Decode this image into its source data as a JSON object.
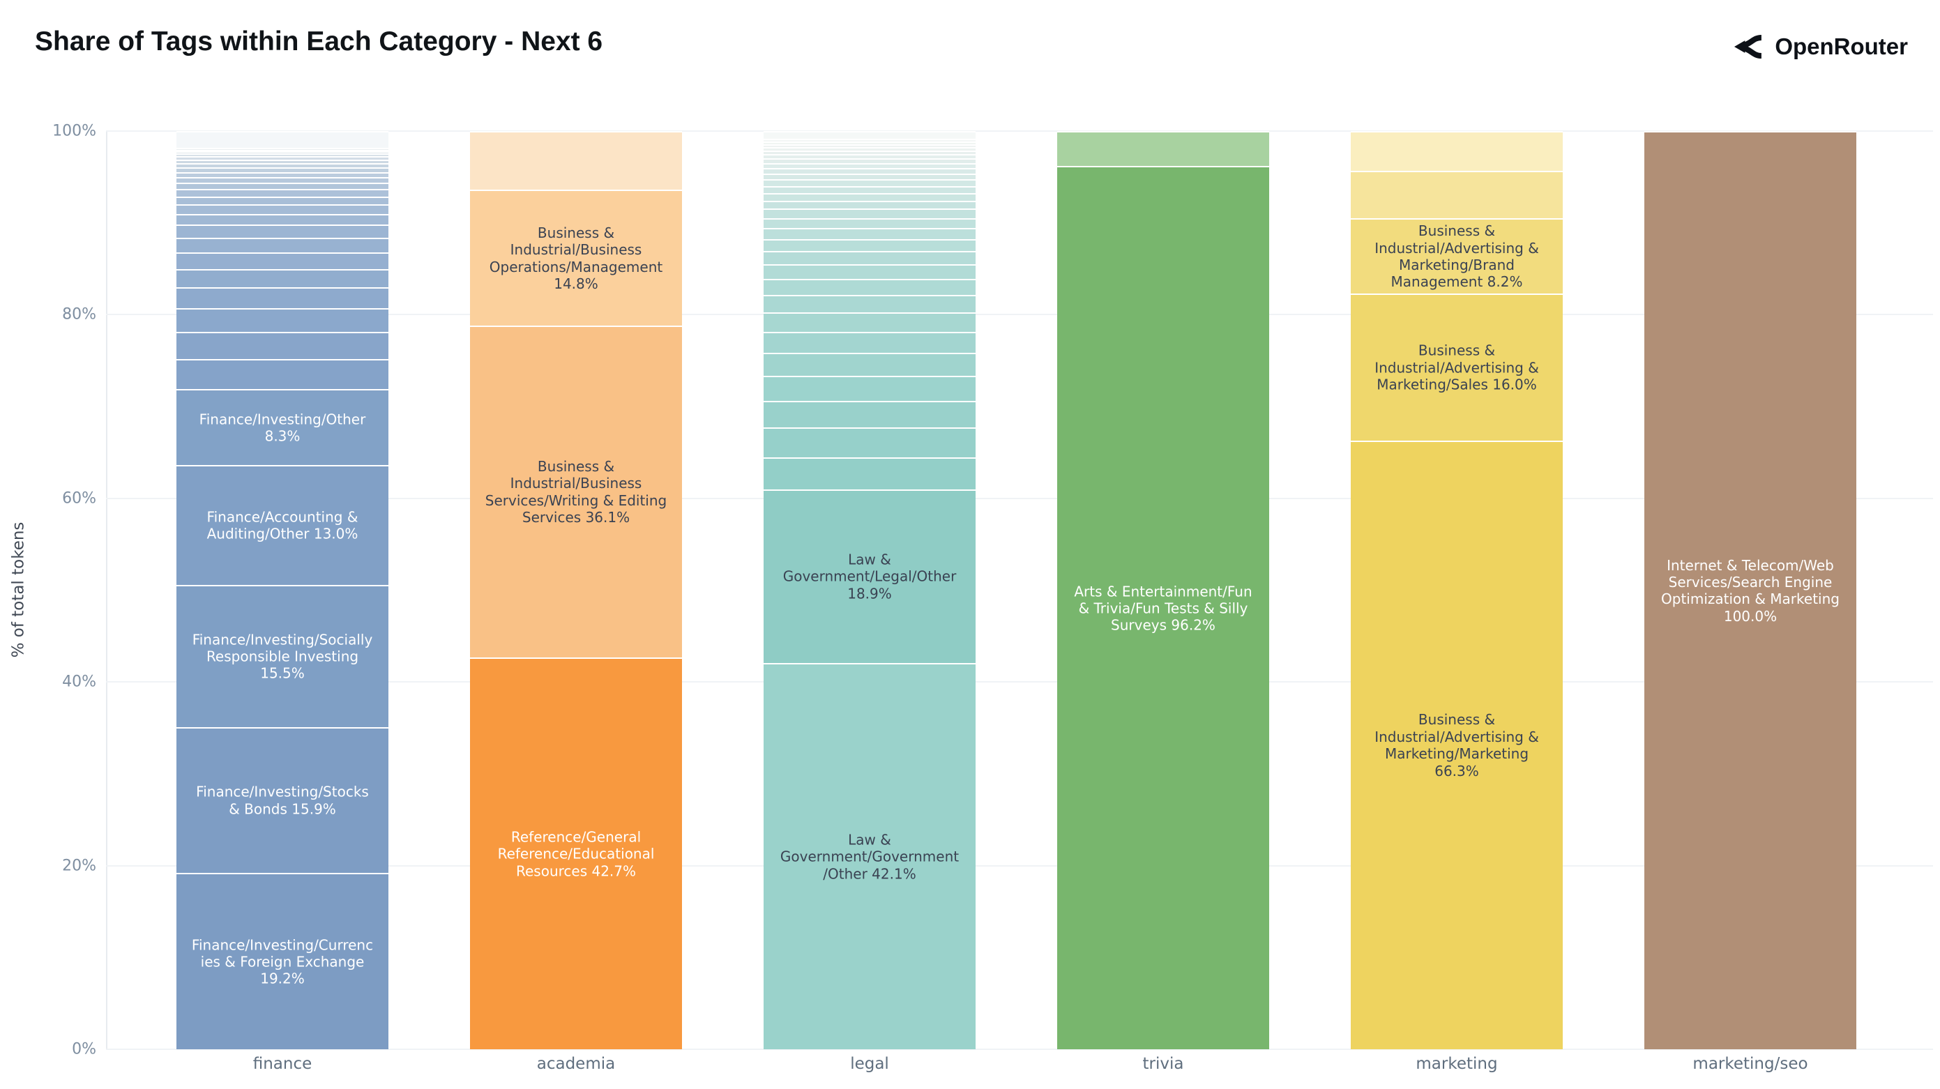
{
  "header": {
    "title": "Share of Tags within Each Category - Next 6",
    "brand": "OpenRouter"
  },
  "y_axis": {
    "title": "% of total tokens",
    "ticks": [
      "0%",
      "20%",
      "40%",
      "60%",
      "80%",
      "100%"
    ]
  },
  "chart_data": {
    "type": "bar",
    "subtype": "percent-stacked-vertical",
    "title": "Share of Tags within Each Category - Next 6",
    "xlabel": "",
    "ylabel": "% of total tokens",
    "ylim": [
      0,
      100
    ],
    "grid": true,
    "legend": "none (labels drawn inside segments)",
    "categories": [
      "finance",
      "academia",
      "legal",
      "trivia",
      "marketing",
      "marketing/seo"
    ],
    "bars": [
      {
        "category": "finance",
        "segments": [
          {
            "label": "Finance/Investing/Currencies & Foreign Exchange",
            "pct": 19.2,
            "color": "#7d9cc3",
            "text_color": "#ffffff"
          },
          {
            "label": "Finance/Investing/Stocks & Bonds",
            "pct": 15.9,
            "color": "#7e9dc4",
            "text_color": "#ffffff"
          },
          {
            "label": "Finance/Investing/Socially Responsible Investing",
            "pct": 15.5,
            "color": "#7f9fc5",
            "text_color": "#ffffff"
          },
          {
            "label": "Finance/Accounting & Auditing/Other",
            "pct": 13.0,
            "color": "#81a0c6",
            "text_color": "#ffffff"
          },
          {
            "label": "Finance/Investing/Other",
            "pct": 8.3,
            "color": "#82a2c7",
            "text_color": "#ffffff"
          },
          {
            "label": "",
            "pct": 3.3,
            "color": "#85a3c9"
          },
          {
            "label": "",
            "pct": 2.9,
            "color": "#88a5ca"
          },
          {
            "label": "",
            "pct": 2.6,
            "color": "#8ba8cc"
          },
          {
            "label": "",
            "pct": 2.3,
            "color": "#8eaacd"
          },
          {
            "label": "",
            "pct": 2.0,
            "color": "#91adce"
          },
          {
            "label": "",
            "pct": 1.8,
            "color": "#95afd0"
          },
          {
            "label": "",
            "pct": 1.6,
            "color": "#98b2d1"
          },
          {
            "label": "",
            "pct": 1.4,
            "color": "#9cb5d3"
          },
          {
            "label": "",
            "pct": 1.2,
            "color": "#a0b8d4"
          },
          {
            "label": "",
            "pct": 1.0,
            "color": "#a4bbd6"
          },
          {
            "label": "",
            "pct": 0.9,
            "color": "#a8bed7"
          },
          {
            "label": "",
            "pct": 0.8,
            "color": "#acc1d9"
          },
          {
            "label": "",
            "pct": 0.7,
            "color": "#b1c5da"
          },
          {
            "label": "",
            "pct": 0.6,
            "color": "#b6c8dc"
          },
          {
            "label": "",
            "pct": 0.55,
            "color": "#bbccde"
          },
          {
            "label": "",
            "pct": 0.5,
            "color": "#c0d0df"
          },
          {
            "label": "",
            "pct": 0.45,
            "color": "#c6d4e1"
          },
          {
            "label": "",
            "pct": 0.4,
            "color": "#ccd8e3"
          },
          {
            "label": "",
            "pct": 0.35,
            "color": "#d2dce6"
          },
          {
            "label": "",
            "pct": 0.3,
            "color": "#d8e1e8"
          },
          {
            "label": "",
            "pct": 0.25,
            "color": "#dfe5ea"
          },
          {
            "label": "",
            "pct": 0.2,
            "color": "#e5eaed"
          },
          {
            "label": "",
            "pct": 0.2,
            "color": "#ebeff1"
          },
          {
            "label": "",
            "pct": 1.8,
            "color": "#f4f7f9"
          }
        ]
      },
      {
        "category": "academia",
        "segments": [
          {
            "label": "Reference/General Reference/Educational Resources",
            "pct": 42.7,
            "color": "#f8993f",
            "text_color": "#ffffff"
          },
          {
            "label": "Business & Industrial/Business Services/Writing & Editing Services",
            "pct": 36.1,
            "color": "#f9c186",
            "text_color": "#3a4252"
          },
          {
            "label": "Business & Industrial/Business Operations/Management",
            "pct": 14.8,
            "color": "#fbd09c",
            "text_color": "#3a4252"
          },
          {
            "label": "",
            "pct": 6.4,
            "color": "#fce4c6"
          }
        ]
      },
      {
        "category": "legal",
        "segments": [
          {
            "label": "Law & Government/Government/Other",
            "pct": 42.1,
            "color": "#9ad2cb",
            "text_color": "#3a4252"
          },
          {
            "label": "Law & Government/Legal/Other",
            "pct": 18.9,
            "color": "#8fccc5",
            "text_color": "#3a4252"
          },
          {
            "label": "",
            "pct": 3.5,
            "color": "#93cfc8"
          },
          {
            "label": "",
            "pct": 3.2,
            "color": "#96d0ca"
          },
          {
            "label": "",
            "pct": 2.95,
            "color": "#99d1cb"
          },
          {
            "label": "",
            "pct": 2.7,
            "color": "#9cd3cd"
          },
          {
            "label": "",
            "pct": 2.5,
            "color": "#a0d4ce"
          },
          {
            "label": "",
            "pct": 2.3,
            "color": "#a3d5d0"
          },
          {
            "label": "",
            "pct": 2.1,
            "color": "#a7d7d1"
          },
          {
            "label": "",
            "pct": 1.9,
            "color": "#aad8d3"
          },
          {
            "label": "",
            "pct": 1.75,
            "color": "#aedad5"
          },
          {
            "label": "",
            "pct": 1.6,
            "color": "#b1dbd6"
          },
          {
            "label": "",
            "pct": 1.45,
            "color": "#b5dcd8"
          },
          {
            "label": "",
            "pct": 1.3,
            "color": "#b8ded9"
          },
          {
            "label": "",
            "pct": 1.2,
            "color": "#bcdfdb"
          },
          {
            "label": "",
            "pct": 1.1,
            "color": "#c0e1dd"
          },
          {
            "label": "",
            "pct": 1.0,
            "color": "#c3e2de"
          },
          {
            "label": "",
            "pct": 0.9,
            "color": "#c7e3e0"
          },
          {
            "label": "",
            "pct": 0.8,
            "color": "#cbe5e1"
          },
          {
            "label": "",
            "pct": 0.75,
            "color": "#cee6e3"
          },
          {
            "label": "",
            "pct": 0.75,
            "color": "#d2e8e5"
          },
          {
            "label": "",
            "pct": 0.65,
            "color": "#d6e9e6"
          },
          {
            "label": "",
            "pct": 0.6,
            "color": "#d9eae8"
          },
          {
            "label": "",
            "pct": 0.55,
            "color": "#ddecea"
          },
          {
            "label": "",
            "pct": 0.5,
            "color": "#e1edeb"
          },
          {
            "label": "",
            "pct": 0.45,
            "color": "#e4efed"
          },
          {
            "label": "",
            "pct": 0.4,
            "color": "#e8f0ee"
          },
          {
            "label": "",
            "pct": 0.35,
            "color": "#ecf2f0"
          },
          {
            "label": "",
            "pct": 0.33,
            "color": "#eff3f2"
          },
          {
            "label": "",
            "pct": 0.3,
            "color": "#f1f5f3"
          },
          {
            "label": "",
            "pct": 0.27,
            "color": "#f3f6f5"
          },
          {
            "label": "",
            "pct": 0.85,
            "color": "#f5f8f7"
          }
        ]
      },
      {
        "category": "trivia",
        "segments": [
          {
            "label": "Arts & Entertainment/Fun & Trivia/Fun Tests & Silly Surveys",
            "pct": 96.2,
            "color": "#78b66d",
            "text_color": "#ffffff"
          },
          {
            "label": "",
            "pct": 3.8,
            "color": "#a8d2a0"
          }
        ]
      },
      {
        "category": "marketing",
        "segments": [
          {
            "label": "Business & Industrial/Advertising & Marketing/Marketing",
            "pct": 66.3,
            "color": "#eed35f",
            "text_color": "#3a4252"
          },
          {
            "label": "Business & Industrial/Advertising & Marketing/Sales",
            "pct": 16.0,
            "color": "#efd76c",
            "text_color": "#3a4252"
          },
          {
            "label": "Business & Industrial/Advertising & Marketing/Brand Management",
            "pct": 8.2,
            "color": "#f2dc7e",
            "text_color": "#3a4252"
          },
          {
            "label": "",
            "pct": 5.2,
            "color": "#f6e49c"
          },
          {
            "label": "",
            "pct": 4.3,
            "color": "#faeebf"
          }
        ]
      },
      {
        "category": "marketing/seo",
        "segments": [
          {
            "label": "Internet & Telecom/Web Services/Search Engine Optimization & Marketing",
            "pct": 100.0,
            "color": "#b18f76",
            "text_color": "#ffffff"
          }
        ]
      }
    ]
  }
}
